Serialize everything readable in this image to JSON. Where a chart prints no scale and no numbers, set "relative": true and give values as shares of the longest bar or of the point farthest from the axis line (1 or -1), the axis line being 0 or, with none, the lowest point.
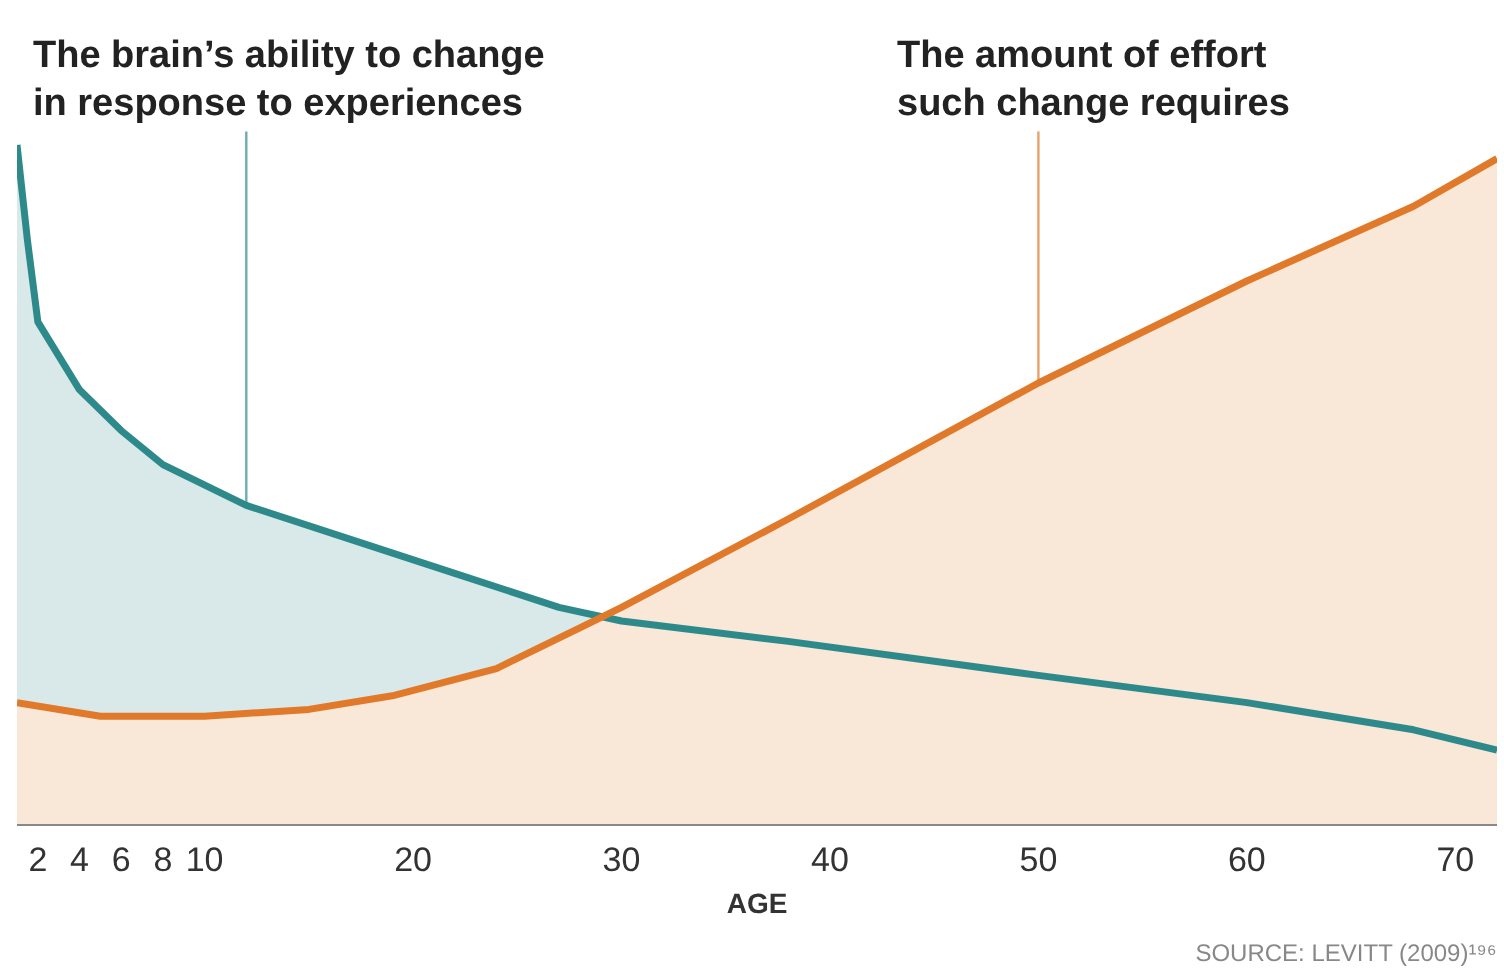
{
  "chart_data": {
    "type": "area",
    "relative": true,
    "xlabel": "AGE",
    "xlim": [
      1,
      72
    ],
    "xticks": [
      2,
      4,
      6,
      8,
      10,
      20,
      30,
      40,
      50,
      60,
      70
    ],
    "tick_labels": "x",
    "grid": false,
    "series": [
      {
        "name": "The brain’s ability to change in response to experiences",
        "color": "#2e8a8a",
        "x": [
          1,
          1.5,
          2,
          4,
          6,
          8,
          12,
          17,
          22,
          27,
          30,
          38,
          50,
          60,
          68,
          72
        ],
        "values": [
          1.0,
          0.86,
          0.74,
          0.64,
          0.58,
          0.53,
          0.47,
          0.42,
          0.37,
          0.32,
          0.3,
          0.27,
          0.22,
          0.18,
          0.14,
          0.11
        ]
      },
      {
        "name": "The amount of effort such change requires",
        "color": "#e07a2a",
        "x": [
          1,
          5,
          10,
          15,
          19,
          24,
          28,
          30,
          38,
          50,
          60,
          68,
          72
        ],
        "values": [
          0.18,
          0.16,
          0.16,
          0.17,
          0.19,
          0.23,
          0.29,
          0.32,
          0.45,
          0.65,
          0.8,
          0.91,
          0.98
        ]
      }
    ],
    "annotations": [
      "SOURCE: LEVITT (2009)¹⁹⁶"
    ]
  }
}
